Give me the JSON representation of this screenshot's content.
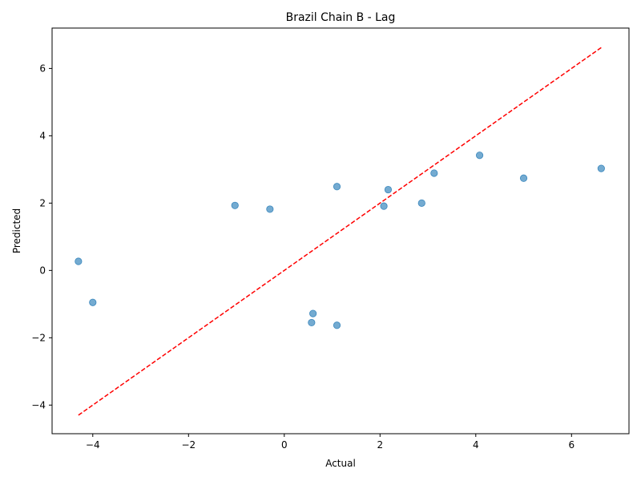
{
  "chart_data": {
    "type": "scatter",
    "title": "Brazil Chain B - Lag",
    "xlabel": "Actual",
    "ylabel": "Predicted",
    "xlim": [
      -4.85,
      7.2
    ],
    "ylim": [
      -4.85,
      7.2
    ],
    "x_ticks": [
      -4,
      -2,
      0,
      2,
      4,
      6
    ],
    "y_ticks": [
      -4,
      -2,
      0,
      2,
      4,
      6
    ],
    "points": [
      {
        "x": -4.3,
        "y": 0.27
      },
      {
        "x": -4.0,
        "y": -0.95
      },
      {
        "x": -1.03,
        "y": 1.93
      },
      {
        "x": -0.3,
        "y": 1.82
      },
      {
        "x": 0.57,
        "y": -1.55
      },
      {
        "x": 0.6,
        "y": -1.28
      },
      {
        "x": 1.1,
        "y": 2.49
      },
      {
        "x": 1.1,
        "y": -1.63
      },
      {
        "x": 2.08,
        "y": 1.91
      },
      {
        "x": 2.17,
        "y": 2.4
      },
      {
        "x": 2.87,
        "y": 2.0
      },
      {
        "x": 3.13,
        "y": 2.89
      },
      {
        "x": 4.08,
        "y": 3.42
      },
      {
        "x": 5.0,
        "y": 2.74
      },
      {
        "x": 6.62,
        "y": 3.03
      }
    ],
    "reference_line": {
      "x": [
        -4.3,
        6.62
      ],
      "y": [
        -4.3,
        6.62
      ]
    },
    "grid": false,
    "colors": {
      "points": "#1f77b4",
      "line": "#ff0000"
    }
  }
}
